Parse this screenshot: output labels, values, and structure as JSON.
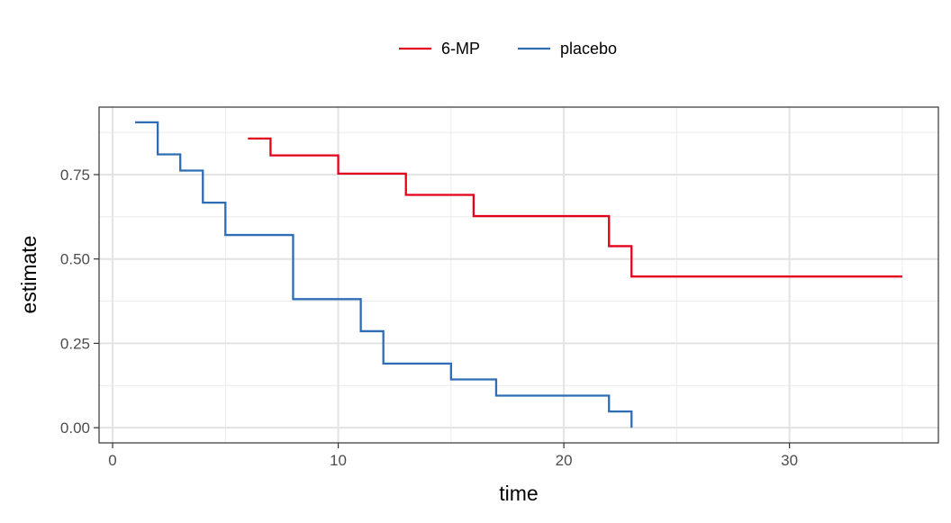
{
  "chart_data": {
    "type": "line",
    "subtype": "step",
    "title": "",
    "xlabel": "time",
    "ylabel": "estimate",
    "xlim": [
      -0.6,
      36.6
    ],
    "ylim": [
      -0.045,
      0.95
    ],
    "xticks": [
      0,
      10,
      20,
      30
    ],
    "xtick_labels": [
      "0",
      "10",
      "20",
      "30"
    ],
    "yticks": [
      0,
      0.25,
      0.5,
      0.75
    ],
    "ytick_labels": [
      "0.00",
      "0.25",
      "0.50",
      "0.75"
    ],
    "grid": true,
    "legend_position": "top",
    "series": [
      {
        "name": "6-MP",
        "color": "#E3001B",
        "x": [
          6,
          7,
          10,
          13,
          16,
          22,
          23,
          35
        ],
        "y": [
          0.857,
          0.807,
          0.753,
          0.69,
          0.627,
          0.538,
          0.448,
          0.448
        ]
      },
      {
        "name": "placebo",
        "color": "#2E6DB4",
        "x": [
          1,
          2,
          3,
          4,
          5,
          8,
          11,
          12,
          15,
          17,
          22,
          23
        ],
        "y": [
          0.905,
          0.81,
          0.762,
          0.667,
          0.571,
          0.381,
          0.286,
          0.19,
          0.143,
          0.095,
          0.048,
          0.0
        ]
      }
    ]
  }
}
